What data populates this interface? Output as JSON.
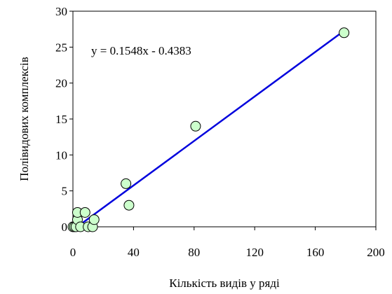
{
  "chart_data": {
    "type": "scatter",
    "title": "",
    "xlabel": "Кількість видів у ряді",
    "ylabel": "Полівидових комплексів",
    "xlim": [
      0,
      200
    ],
    "ylim": [
      0,
      30
    ],
    "x_ticks": [
      0,
      40,
      80,
      120,
      160,
      200
    ],
    "y_ticks": [
      0,
      5,
      10,
      15,
      20,
      25,
      30
    ],
    "grid": false,
    "legend": "none",
    "points": [
      {
        "x": 0,
        "y": 0
      },
      {
        "x": 1,
        "y": 0
      },
      {
        "x": 2,
        "y": 0
      },
      {
        "x": 3,
        "y": 1
      },
      {
        "x": 3,
        "y": 2
      },
      {
        "x": 5,
        "y": 0
      },
      {
        "x": 8,
        "y": 2
      },
      {
        "x": 10,
        "y": 0
      },
      {
        "x": 13,
        "y": 0
      },
      {
        "x": 14,
        "y": 1
      },
      {
        "x": 35,
        "y": 6
      },
      {
        "x": 37,
        "y": 3
      },
      {
        "x": 81,
        "y": 14
      },
      {
        "x": 179,
        "y": 27
      }
    ],
    "trendline": {
      "equation": "y = 0.1548x - 0.4383",
      "slope": 0.1548,
      "intercept": -0.4383,
      "x_range": [
        3,
        179
      ]
    },
    "colors": {
      "marker_fill": "#ccffcc",
      "marker_stroke": "#000000",
      "trendline": "#0000dd",
      "axis": "#000000"
    }
  }
}
